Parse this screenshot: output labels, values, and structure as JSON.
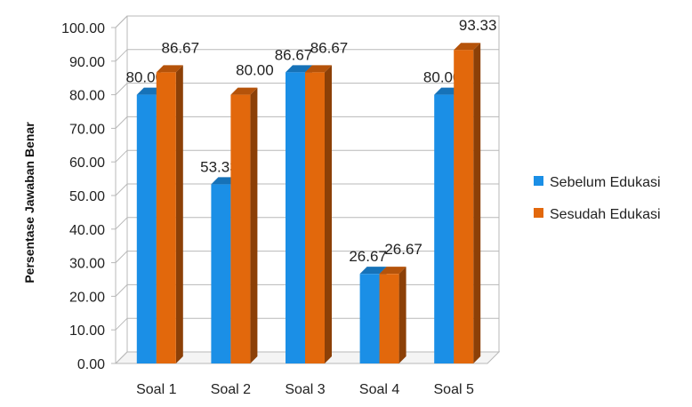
{
  "chart_data": {
    "type": "bar",
    "title": "",
    "xlabel": "",
    "ylabel": "Persentase Jawaban Benar",
    "ylim": [
      0,
      100
    ],
    "yticks": [
      "0.00",
      "10.00",
      "20.00",
      "30.00",
      "40.00",
      "50.00",
      "60.00",
      "70.00",
      "80.00",
      "90.00",
      "100.00"
    ],
    "categories": [
      "Soal 1",
      "Soal 2",
      "Soal 3",
      "Soal 4",
      "Soal 5"
    ],
    "series": [
      {
        "name": "Sebelum Edukasi",
        "color": "#1b8fe6",
        "values": [
          80.0,
          53.33,
          86.67,
          26.67,
          80.0
        ],
        "labels": [
          "80.00",
          "53.33",
          "86.67",
          "26.67",
          "80.00"
        ]
      },
      {
        "name": "Sesudah Edukasi",
        "color": "#e2680c",
        "values": [
          86.67,
          80.0,
          86.67,
          26.67,
          93.33
        ],
        "labels": [
          "86.67",
          "80.00",
          "86.67",
          "26.67",
          "93.33"
        ]
      }
    ],
    "grid": true,
    "legend": "right",
    "style": "3d-clustered-column"
  }
}
